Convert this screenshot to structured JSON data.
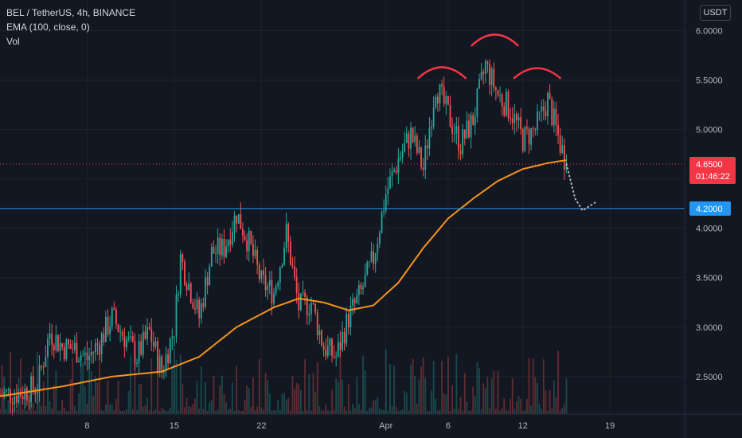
{
  "header": {
    "symbol_line": "BEL / TetherUS, 4h, BINANCE",
    "ema_line": "EMA (100, close, 0)",
    "vol_line": "Vol",
    "currency": "USDT"
  },
  "price_label": {
    "value": "4.6500",
    "countdown": "01:46:22",
    "color": "#f23645"
  },
  "level_label": {
    "value": "4.2000",
    "color": "#2196f3"
  },
  "colors": {
    "up": "#26a69a",
    "down": "#ef5350",
    "ema": "#f7931a",
    "pattern": "#f23645",
    "bg": "#131722"
  },
  "chart_data": {
    "type": "candlestick",
    "timeframe": "4h",
    "y_ticks": [
      "2.5000",
      "3.0000",
      "3.5000",
      "4.0000",
      "4.5000",
      "5.0000",
      "5.5000",
      "6.0000"
    ],
    "y_tick_values": [
      2.5,
      3.0,
      3.5,
      4.0,
      4.5,
      5.0,
      5.5,
      6.0
    ],
    "x_ticks": [
      "8",
      "15",
      "22",
      "Apr",
      "6",
      "12",
      "19"
    ],
    "x_tick_days": [
      8,
      15,
      22,
      32,
      37,
      43,
      50
    ],
    "ylim": [
      2.12,
      6.31
    ],
    "xlim_days": [
      1.0,
      56.0
    ],
    "horizontal_level": 4.2,
    "last_price": 4.65,
    "price_anchors": [
      [
        1.0,
        2.32
      ],
      [
        2.5,
        2.33
      ],
      [
        4.0,
        2.4
      ],
      [
        5.0,
        2.95
      ],
      [
        6.0,
        2.8
      ],
      [
        7.0,
        2.78
      ],
      [
        8.0,
        2.68
      ],
      [
        9.0,
        2.85
      ],
      [
        10.0,
        3.1
      ],
      [
        11.0,
        2.9
      ],
      [
        12.0,
        2.7
      ],
      [
        13.0,
        2.95
      ],
      [
        14.0,
        2.55
      ],
      [
        15.0,
        3.0
      ],
      [
        15.5,
        3.7
      ],
      [
        16.0,
        3.5
      ],
      [
        17.0,
        3.1
      ],
      [
        18.0,
        3.75
      ],
      [
        19.0,
        3.8
      ],
      [
        20.0,
        4.15
      ],
      [
        21.0,
        3.85
      ],
      [
        22.0,
        3.45
      ],
      [
        23.0,
        3.35
      ],
      [
        24.0,
        3.95
      ],
      [
        25.0,
        3.2
      ],
      [
        26.0,
        3.25
      ],
      [
        27.0,
        2.8
      ],
      [
        28.0,
        2.7
      ],
      [
        29.0,
        3.1
      ],
      [
        30.0,
        3.35
      ],
      [
        31.0,
        3.7
      ],
      [
        32.0,
        4.35
      ],
      [
        33.0,
        4.7
      ],
      [
        34.0,
        4.95
      ],
      [
        35.0,
        4.6
      ],
      [
        36.0,
        5.45
      ],
      [
        37.0,
        5.15
      ],
      [
        38.0,
        4.85
      ],
      [
        39.0,
        5.1
      ],
      [
        40.0,
        5.65
      ],
      [
        41.0,
        5.35
      ],
      [
        42.0,
        5.2
      ],
      [
        43.0,
        4.9
      ],
      [
        44.0,
        5.0
      ],
      [
        45.0,
        5.3
      ],
      [
        46.0,
        4.85
      ],
      [
        46.5,
        4.65
      ]
    ],
    "ema_anchors": [
      [
        1.0,
        2.3
      ],
      [
        6.0,
        2.4
      ],
      [
        10.0,
        2.5
      ],
      [
        14.0,
        2.55
      ],
      [
        17.0,
        2.7
      ],
      [
        20.0,
        3.0
      ],
      [
        23.0,
        3.2
      ],
      [
        25.0,
        3.29
      ],
      [
        27.0,
        3.25
      ],
      [
        29.0,
        3.17
      ],
      [
        31.0,
        3.22
      ],
      [
        33.0,
        3.45
      ],
      [
        35.0,
        3.8
      ],
      [
        37.0,
        4.1
      ],
      [
        39.0,
        4.3
      ],
      [
        41.0,
        4.48
      ],
      [
        43.0,
        4.6
      ],
      [
        45.0,
        4.66
      ],
      [
        46.5,
        4.69
      ]
    ],
    "projection": [
      [
        46.5,
        4.65
      ],
      [
        47.2,
        4.3
      ],
      [
        47.8,
        4.18
      ],
      [
        48.8,
        4.26
      ]
    ],
    "pattern_arcs": [
      {
        "name": "left-shoulder",
        "x0": 34.6,
        "x1": 38.4,
        "y": 5.52,
        "peak": 5.63
      },
      {
        "name": "head",
        "x0": 38.9,
        "x1": 42.6,
        "y": 5.85,
        "peak": 5.96
      },
      {
        "name": "right-shoulder",
        "x0": 42.3,
        "x1": 46.0,
        "y": 5.52,
        "peak": 5.62
      }
    ]
  }
}
